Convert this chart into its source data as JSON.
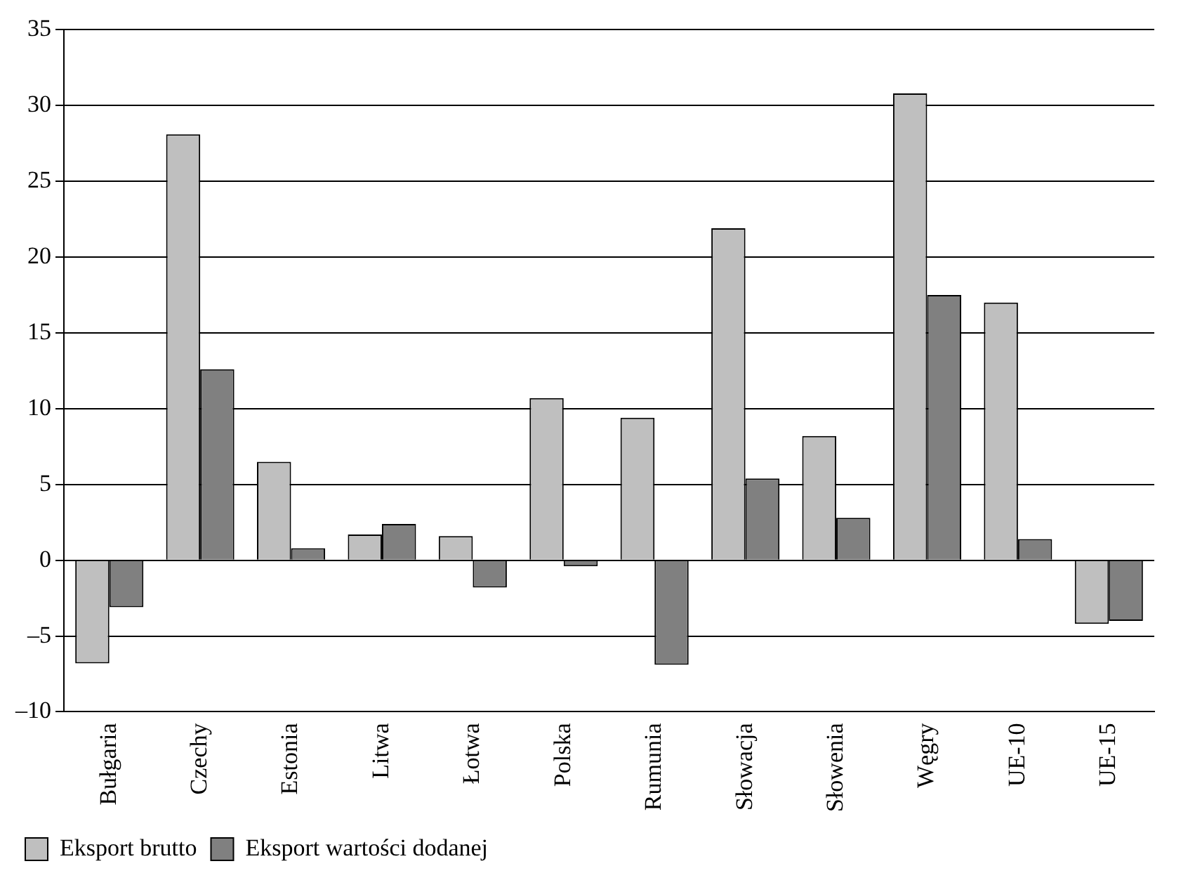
{
  "chart_data": {
    "type": "bar",
    "categories": [
      "Bułgaria",
      "Czechy",
      "Estonia",
      "Litwa",
      "Łotwa",
      "Polska",
      "Rumunia",
      "Słowacja",
      "Słowenia",
      "Węgry",
      "UE-10",
      "UE-15"
    ],
    "series": [
      {
        "name": "Eksport brutto",
        "color": "#bfbfbf",
        "values": [
          -6.8,
          28.1,
          6.5,
          1.7,
          1.6,
          10.7,
          9.4,
          21.9,
          8.2,
          30.8,
          17.0,
          -4.2
        ]
      },
      {
        "name": "Eksport wartości dodanej",
        "color": "#808080",
        "values": [
          -3.1,
          12.6,
          0.8,
          2.4,
          -1.8,
          -0.4,
          -6.9,
          5.4,
          2.8,
          17.5,
          1.4,
          -4.0
        ]
      }
    ],
    "ylim": [
      -10,
      35
    ],
    "yticks": [
      {
        "value": -10,
        "label": "–10"
      },
      {
        "value": -5,
        "label": "–5"
      },
      0,
      5,
      10,
      15,
      20,
      25,
      30,
      35
    ],
    "grid": "y",
    "legend": "bottom left"
  }
}
